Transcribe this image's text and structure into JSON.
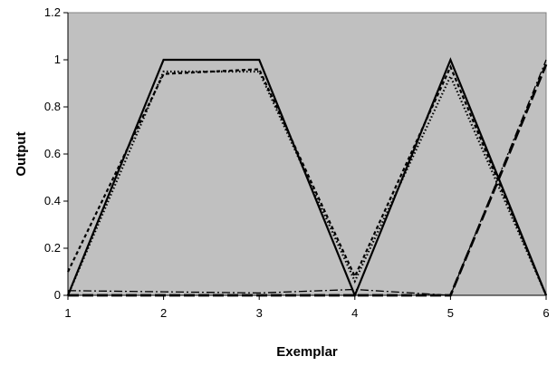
{
  "chart_data": {
    "type": "line",
    "title": "",
    "xlabel": "Exemplar",
    "ylabel": "Output",
    "x": [
      1,
      2,
      3,
      4,
      5,
      6
    ],
    "xlim": [
      1,
      6
    ],
    "ylim": [
      0,
      1.2
    ],
    "x_ticks": [
      "1",
      "2",
      "3",
      "4",
      "5",
      "6"
    ],
    "y_ticks": [
      "0",
      "0.2",
      "0.4",
      "0.6",
      "0.8",
      "1",
      "1.2"
    ],
    "grid": false,
    "legend": "none",
    "plot_background": "#c0c0c0",
    "series": [
      {
        "style": "solid",
        "color": "#000000",
        "values": [
          0,
          1,
          1,
          0,
          1,
          0
        ]
      },
      {
        "style": "dashed",
        "color": "#000000",
        "values": [
          0.1,
          0.94,
          0.96,
          0.08,
          0.97,
          0.0
        ]
      },
      {
        "style": "dotted",
        "color": "#000000",
        "values": [
          0.0,
          0.95,
          0.95,
          0.06,
          0.93,
          0.0
        ]
      },
      {
        "style": "dash-dot",
        "color": "#000000",
        "values": [
          0.02,
          0.015,
          0.01,
          0.025,
          0.0,
          1.0
        ]
      },
      {
        "style": "long-dash",
        "color": "#000000",
        "values": [
          0.0,
          0.0,
          0.0,
          0.0,
          0.0,
          0.98
        ]
      }
    ]
  }
}
